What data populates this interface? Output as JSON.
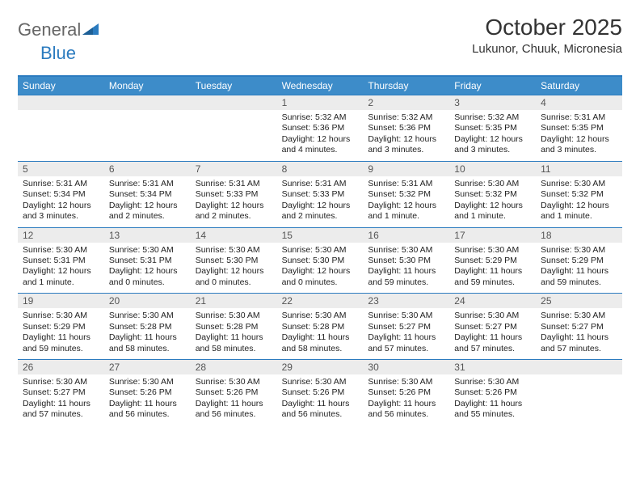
{
  "logo": {
    "text1": "General",
    "text2": "Blue"
  },
  "title": "October 2025",
  "location": "Lukunor, Chuuk, Micronesia",
  "colors": {
    "header_bg": "#3d8cc9",
    "border": "#2b7bbf",
    "daynum_bg": "#ececec",
    "text": "#222222",
    "logo_gray": "#666666",
    "logo_blue": "#2b7bbf"
  },
  "days_of_week": [
    "Sunday",
    "Monday",
    "Tuesday",
    "Wednesday",
    "Thursday",
    "Friday",
    "Saturday"
  ],
  "weeks": [
    [
      null,
      null,
      null,
      {
        "n": "1",
        "sr": "Sunrise: 5:32 AM",
        "ss": "Sunset: 5:36 PM",
        "dl": "Daylight: 12 hours and 4 minutes."
      },
      {
        "n": "2",
        "sr": "Sunrise: 5:32 AM",
        "ss": "Sunset: 5:36 PM",
        "dl": "Daylight: 12 hours and 3 minutes."
      },
      {
        "n": "3",
        "sr": "Sunrise: 5:32 AM",
        "ss": "Sunset: 5:35 PM",
        "dl": "Daylight: 12 hours and 3 minutes."
      },
      {
        "n": "4",
        "sr": "Sunrise: 5:31 AM",
        "ss": "Sunset: 5:35 PM",
        "dl": "Daylight: 12 hours and 3 minutes."
      }
    ],
    [
      {
        "n": "5",
        "sr": "Sunrise: 5:31 AM",
        "ss": "Sunset: 5:34 PM",
        "dl": "Daylight: 12 hours and 3 minutes."
      },
      {
        "n": "6",
        "sr": "Sunrise: 5:31 AM",
        "ss": "Sunset: 5:34 PM",
        "dl": "Daylight: 12 hours and 2 minutes."
      },
      {
        "n": "7",
        "sr": "Sunrise: 5:31 AM",
        "ss": "Sunset: 5:33 PM",
        "dl": "Daylight: 12 hours and 2 minutes."
      },
      {
        "n": "8",
        "sr": "Sunrise: 5:31 AM",
        "ss": "Sunset: 5:33 PM",
        "dl": "Daylight: 12 hours and 2 minutes."
      },
      {
        "n": "9",
        "sr": "Sunrise: 5:31 AM",
        "ss": "Sunset: 5:32 PM",
        "dl": "Daylight: 12 hours and 1 minute."
      },
      {
        "n": "10",
        "sr": "Sunrise: 5:30 AM",
        "ss": "Sunset: 5:32 PM",
        "dl": "Daylight: 12 hours and 1 minute."
      },
      {
        "n": "11",
        "sr": "Sunrise: 5:30 AM",
        "ss": "Sunset: 5:32 PM",
        "dl": "Daylight: 12 hours and 1 minute."
      }
    ],
    [
      {
        "n": "12",
        "sr": "Sunrise: 5:30 AM",
        "ss": "Sunset: 5:31 PM",
        "dl": "Daylight: 12 hours and 1 minute."
      },
      {
        "n": "13",
        "sr": "Sunrise: 5:30 AM",
        "ss": "Sunset: 5:31 PM",
        "dl": "Daylight: 12 hours and 0 minutes."
      },
      {
        "n": "14",
        "sr": "Sunrise: 5:30 AM",
        "ss": "Sunset: 5:30 PM",
        "dl": "Daylight: 12 hours and 0 minutes."
      },
      {
        "n": "15",
        "sr": "Sunrise: 5:30 AM",
        "ss": "Sunset: 5:30 PM",
        "dl": "Daylight: 12 hours and 0 minutes."
      },
      {
        "n": "16",
        "sr": "Sunrise: 5:30 AM",
        "ss": "Sunset: 5:30 PM",
        "dl": "Daylight: 11 hours and 59 minutes."
      },
      {
        "n": "17",
        "sr": "Sunrise: 5:30 AM",
        "ss": "Sunset: 5:29 PM",
        "dl": "Daylight: 11 hours and 59 minutes."
      },
      {
        "n": "18",
        "sr": "Sunrise: 5:30 AM",
        "ss": "Sunset: 5:29 PM",
        "dl": "Daylight: 11 hours and 59 minutes."
      }
    ],
    [
      {
        "n": "19",
        "sr": "Sunrise: 5:30 AM",
        "ss": "Sunset: 5:29 PM",
        "dl": "Daylight: 11 hours and 59 minutes."
      },
      {
        "n": "20",
        "sr": "Sunrise: 5:30 AM",
        "ss": "Sunset: 5:28 PM",
        "dl": "Daylight: 11 hours and 58 minutes."
      },
      {
        "n": "21",
        "sr": "Sunrise: 5:30 AM",
        "ss": "Sunset: 5:28 PM",
        "dl": "Daylight: 11 hours and 58 minutes."
      },
      {
        "n": "22",
        "sr": "Sunrise: 5:30 AM",
        "ss": "Sunset: 5:28 PM",
        "dl": "Daylight: 11 hours and 58 minutes."
      },
      {
        "n": "23",
        "sr": "Sunrise: 5:30 AM",
        "ss": "Sunset: 5:27 PM",
        "dl": "Daylight: 11 hours and 57 minutes."
      },
      {
        "n": "24",
        "sr": "Sunrise: 5:30 AM",
        "ss": "Sunset: 5:27 PM",
        "dl": "Daylight: 11 hours and 57 minutes."
      },
      {
        "n": "25",
        "sr": "Sunrise: 5:30 AM",
        "ss": "Sunset: 5:27 PM",
        "dl": "Daylight: 11 hours and 57 minutes."
      }
    ],
    [
      {
        "n": "26",
        "sr": "Sunrise: 5:30 AM",
        "ss": "Sunset: 5:27 PM",
        "dl": "Daylight: 11 hours and 57 minutes."
      },
      {
        "n": "27",
        "sr": "Sunrise: 5:30 AM",
        "ss": "Sunset: 5:26 PM",
        "dl": "Daylight: 11 hours and 56 minutes."
      },
      {
        "n": "28",
        "sr": "Sunrise: 5:30 AM",
        "ss": "Sunset: 5:26 PM",
        "dl": "Daylight: 11 hours and 56 minutes."
      },
      {
        "n": "29",
        "sr": "Sunrise: 5:30 AM",
        "ss": "Sunset: 5:26 PM",
        "dl": "Daylight: 11 hours and 56 minutes."
      },
      {
        "n": "30",
        "sr": "Sunrise: 5:30 AM",
        "ss": "Sunset: 5:26 PM",
        "dl": "Daylight: 11 hours and 56 minutes."
      },
      {
        "n": "31",
        "sr": "Sunrise: 5:30 AM",
        "ss": "Sunset: 5:26 PM",
        "dl": "Daylight: 11 hours and 55 minutes."
      },
      null
    ]
  ]
}
